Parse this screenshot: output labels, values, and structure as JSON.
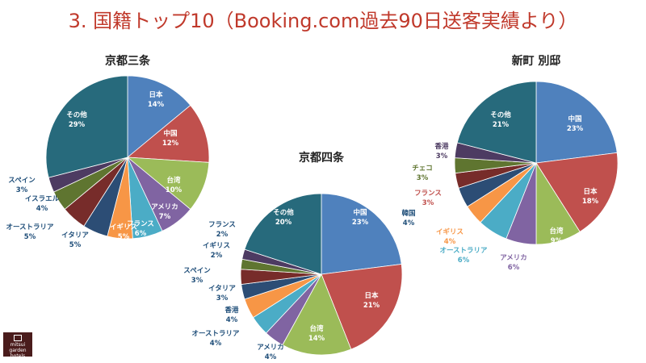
{
  "page": {
    "title": "3. 国籍トップ10（Booking.com過去90日送客実績より）",
    "logo_text": "mitsui garden hotels",
    "title_color": "#c0392b"
  },
  "colors": {
    "日本": "#4f81bd",
    "中国": "#c0504d",
    "台湾": "#9bbb59",
    "アメリカ": "#8064a2",
    "フランス": "#4bacc6",
    "イギリス": "#f79646",
    "イタリア": "#2c4d75",
    "オーストラリア": "#772c2a",
    "イスラエル": "#5f7530",
    "スペイン": "#4d3b62",
    "その他": "#276a7c",
    "香港": "#f79646",
    "韓国": "#2c4d75",
    "チェコ": "#5f7530"
  },
  "chart_data": [
    {
      "type": "pie",
      "title": "京都三条",
      "labels": [
        "日本",
        "中国",
        "台湾",
        "アメリカ",
        "フランス",
        "イギリス",
        "イタリア",
        "オーストラリア",
        "イスラエル",
        "スペイン",
        "その他"
      ],
      "values": [
        14,
        12,
        10,
        7,
        6,
        5,
        5,
        5,
        4,
        3,
        29
      ],
      "colors": [
        "#4f81bd",
        "#c0504d",
        "#9bbb59",
        "#8064a2",
        "#4bacc6",
        "#f79646",
        "#2c4d75",
        "#772c2a",
        "#5f7530",
        "#4d3b62",
        "#276a7c"
      ],
      "label_colors": [
        "#ffffff",
        "#ffffff",
        "#ffffff",
        "#ffffff",
        "#ffffff",
        "#ffffff",
        "#1f4e79",
        "#1f4e79",
        "#1f4e79",
        "#1f4e79",
        "#ffffff"
      ]
    },
    {
      "type": "pie",
      "title": "京都四条",
      "labels": [
        "中国",
        "日本",
        "台湾",
        "アメリカ",
        "オーストラリア",
        "香港",
        "イタリア",
        "スペイン",
        "イギリス",
        "フランス",
        "その他"
      ],
      "values": [
        23,
        21,
        14,
        4,
        4,
        4,
        3,
        3,
        2,
        2,
        20
      ],
      "colors": [
        "#4f81bd",
        "#c0504d",
        "#9bbb59",
        "#8064a2",
        "#4bacc6",
        "#f79646",
        "#2c4d75",
        "#772c2a",
        "#5f7530",
        "#4d3b62",
        "#276a7c"
      ],
      "label_colors": [
        "#ffffff",
        "#ffffff",
        "#ffffff",
        "#1f4e79",
        "#1f4e79",
        "#1f4e79",
        "#1f4e79",
        "#1f4e79",
        "#1f4e79",
        "#1f4e79",
        "#ffffff"
      ]
    },
    {
      "type": "pie",
      "title": "新町 別邸",
      "labels": [
        "中国",
        "日本",
        "台湾",
        "アメリカ",
        "オーストラリア",
        "イギリス",
        "韓国",
        "フランス",
        "チェコ",
        "香港",
        "その他"
      ],
      "values": [
        23,
        18,
        9,
        6,
        6,
        4,
        4,
        3,
        3,
        3,
        21
      ],
      "colors": [
        "#4f81bd",
        "#c0504d",
        "#9bbb59",
        "#8064a2",
        "#4bacc6",
        "#f79646",
        "#2c4d75",
        "#772c2a",
        "#5f7530",
        "#4d3b62",
        "#276a7c"
      ],
      "label_colors": [
        "#ffffff",
        "#ffffff",
        "#ffffff",
        "#8064a2",
        "#4bacc6",
        "#f79646",
        "#1f4e79",
        "#c0504d",
        "#5f7530",
        "#4d3b62",
        "#ffffff"
      ]
    }
  ]
}
